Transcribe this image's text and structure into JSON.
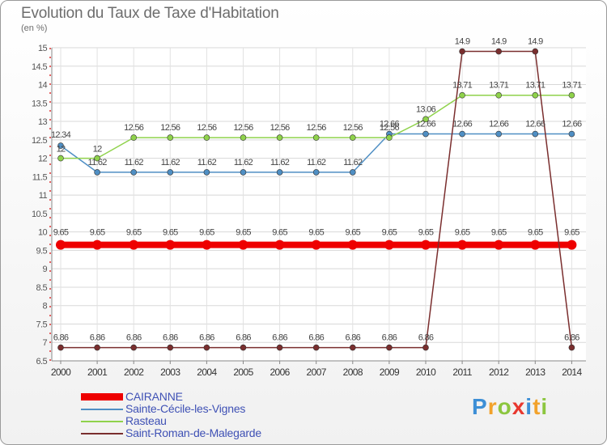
{
  "header": {
    "title": "Evolution du Taux de Taxe d'Habitation",
    "unit": "(en %)"
  },
  "chart_data": {
    "type": "line",
    "title": "Evolution du Taux de Taxe d'Habitation",
    "ylabel": "(en %)",
    "xlabel": "",
    "x": [
      "2000",
      "2001",
      "2002",
      "2003",
      "2004",
      "2005",
      "2006",
      "2007",
      "2008",
      "2009",
      "2010",
      "2011",
      "2012",
      "2013",
      "2014"
    ],
    "ylim": [
      6.5,
      15
    ],
    "yticks": [
      "6.5",
      "7",
      "7.5",
      "8",
      "8.5",
      "9",
      "9.5",
      "10",
      "10.5",
      "11",
      "11.5",
      "12",
      "12.5",
      "13",
      "13.5",
      "14",
      "14.5",
      "15"
    ],
    "grid": true,
    "legend_position": "bottom-left",
    "series": [
      {
        "name": "CAIRANNE",
        "color": "#ee0000",
        "values": [
          9.65,
          9.65,
          9.65,
          9.65,
          9.65,
          9.65,
          9.65,
          9.65,
          9.65,
          9.65,
          9.65,
          9.65,
          9.65,
          9.65,
          9.65
        ],
        "labels": [
          "9.65",
          "9.65",
          "9.65",
          "9.65",
          "9.65",
          "9.65",
          "9.65",
          "9.65",
          "9.65",
          "9.65",
          "9.65",
          "9.65",
          "9.65",
          "9.65",
          "9.65"
        ]
      },
      {
        "name": "Sainte-Cécile-les-Vignes",
        "color": "#4f8fc4",
        "values": [
          12.34,
          11.62,
          11.62,
          11.62,
          11.62,
          11.62,
          11.62,
          11.62,
          11.62,
          12.66,
          12.66,
          12.66,
          12.66,
          12.66,
          12.66
        ],
        "labels": [
          "12.34",
          "11.62",
          "11.62",
          "11.62",
          "11.62",
          "11.62",
          "11.62",
          "11.62",
          "11.62",
          "12.66",
          "12.66",
          "12.66",
          "12.66",
          "12.66",
          "12.66"
        ]
      },
      {
        "name": "Rasteau",
        "color": "#8fd24b",
        "values": [
          12,
          12,
          12.56,
          12.56,
          12.56,
          12.56,
          12.56,
          12.56,
          12.56,
          12.56,
          13.06,
          13.71,
          13.71,
          13.71,
          13.71
        ],
        "labels": [
          "12",
          "12",
          "12.56",
          "12.56",
          "12.56",
          "12.56",
          "12.56",
          "12.56",
          "12.56",
          "12.56",
          "13.06",
          "13.71",
          "13.71",
          "13.71",
          "13.71"
        ]
      },
      {
        "name": "Saint-Roman-de-Malegarde",
        "color": "#7a2e2e",
        "values": [
          6.86,
          6.86,
          6.86,
          6.86,
          6.86,
          6.86,
          6.86,
          6.86,
          6.86,
          6.86,
          6.86,
          14.9,
          14.9,
          14.9,
          6.86
        ],
        "labels": [
          "6.86",
          "6.86",
          "6.86",
          "6.86",
          "6.86",
          "6.86",
          "6.86",
          "6.86",
          "6.86",
          "6.86",
          "6.86",
          "14.9",
          "14.9",
          "14.9",
          "6.86"
        ]
      }
    ]
  },
  "legend": {
    "items": [
      {
        "label": "CAIRANNE"
      },
      {
        "label": "Sainte-Cécile-les-Vignes"
      },
      {
        "label": "Rasteau"
      },
      {
        "label": "Saint-Roman-de-Malegarde"
      }
    ]
  },
  "logo": {
    "letters": [
      {
        "char": "P",
        "color": "#3d8fd6"
      },
      {
        "char": "r",
        "color": "#f2a22b"
      },
      {
        "char": "o",
        "color": "#8cc63f"
      },
      {
        "char": "x",
        "color": "#e8382f"
      },
      {
        "char": "i",
        "color": "#3d8fd6"
      },
      {
        "char": "t",
        "color": "#f2a22b"
      },
      {
        "char": "i",
        "color": "#8cc63f"
      }
    ]
  }
}
